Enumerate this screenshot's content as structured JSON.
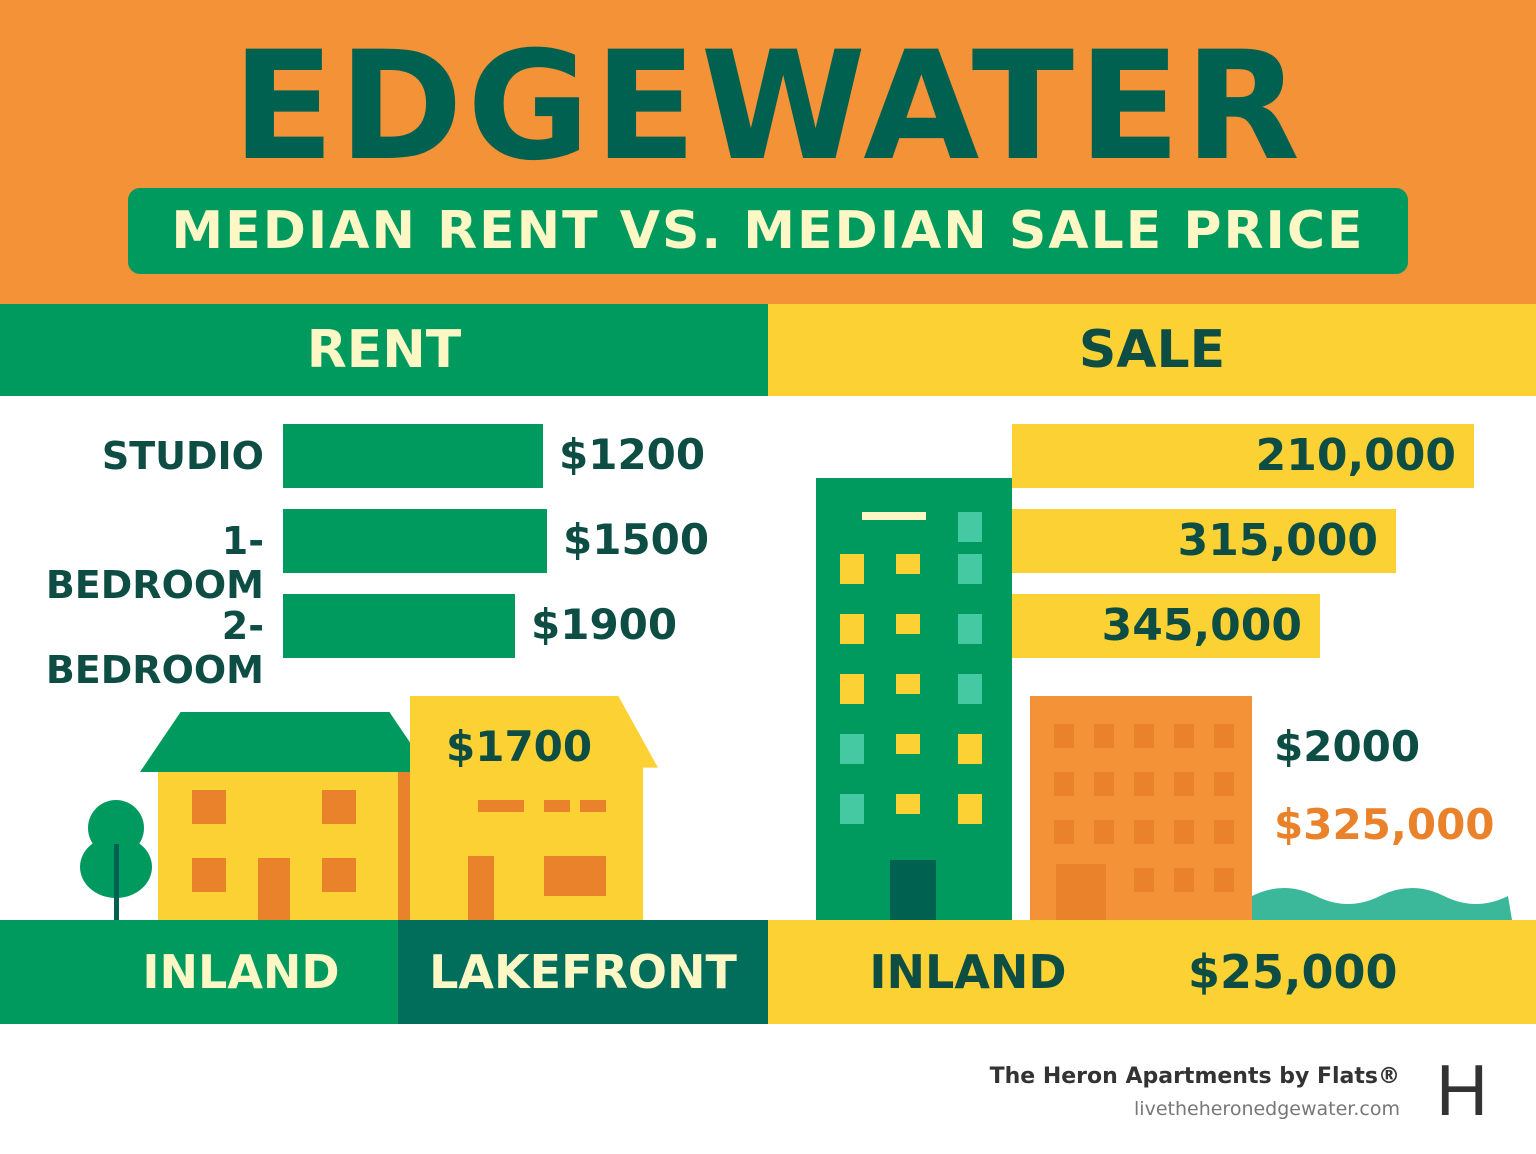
{
  "header": {
    "title": "EDGEWATER",
    "subtitle": "MEDIAN RENT VS. MEDIAN SALE PRICE"
  },
  "sections": {
    "rent": "RENT",
    "sale": "SALE"
  },
  "chart_data": [
    {
      "type": "bar",
      "title": "RENT",
      "categories": [
        "STUDIO",
        "1-BEDROOM",
        "2-BEDROOM"
      ],
      "values": [
        1200,
        1500,
        1900
      ],
      "labels": [
        "$1200",
        "$1500",
        "$1900"
      ]
    },
    {
      "type": "bar",
      "title": "SALE",
      "categories": [
        "",
        "",
        ""
      ],
      "values": [
        210000,
        315000,
        345000
      ],
      "labels": [
        "210,000",
        "315,000",
        "345,000"
      ]
    }
  ],
  "rent_extra": {
    "lakefront_value": "$1700"
  },
  "sale_extra": {
    "rent_value": "$2000",
    "sale_value": "$325,000"
  },
  "footer_bar": {
    "rent_inland": "INLAND",
    "rent_lakefront": "LAKEFRONT",
    "sale_inland": "INLAND",
    "sale_value": "$25,000"
  },
  "brand": {
    "name": "The Heron Apartments by Flats®",
    "url": "livetheheronedgewater.com",
    "logo": "H"
  },
  "colors": {
    "orange": "#f39237",
    "green": "#009a5e",
    "dark_green": "#006150",
    "yellow": "#fbd133"
  }
}
